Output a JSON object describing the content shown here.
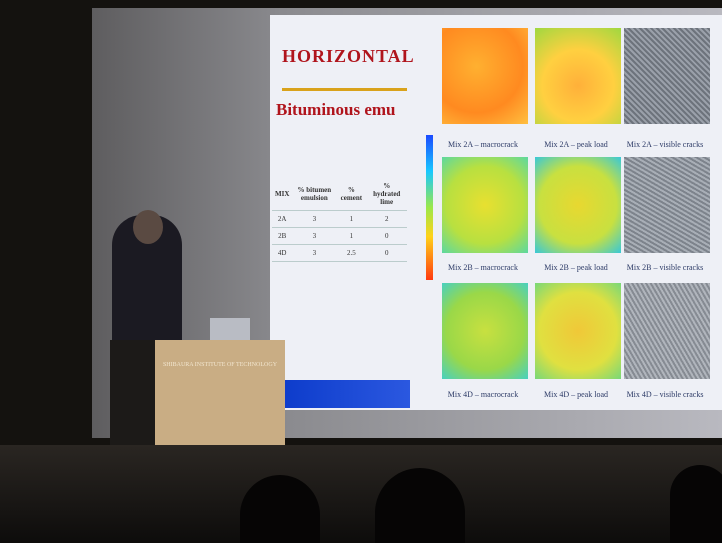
{
  "slide": {
    "title": "HORIZONTAL",
    "subtitle": "Bituminous emu",
    "table": {
      "header": [
        "MIX",
        "% bitumen emulsion",
        "% cement",
        "% hydrated lime"
      ],
      "rows": [
        [
          "2A",
          "3",
          "1",
          "2"
        ],
        [
          "2B",
          "3",
          "1",
          "0"
        ],
        [
          "4D",
          "3",
          "2.5",
          "0"
        ]
      ]
    },
    "captions": [
      [
        "Mix 2A – macrocrack",
        "Mix 2A – peak load",
        "Mix 2A – visible cracks"
      ],
      [
        "Mix 2B – macrocrack",
        "Mix 2B – peak load",
        "Mix 2B – visible cracks"
      ],
      [
        "Mix 4D – macrocrack",
        "Mix 4D – peak load",
        "Mix 4D – visible cracks"
      ]
    ]
  },
  "podium": {
    "label": "SHIBAURA INSTITUTE OF TECHNOLOGY"
  }
}
